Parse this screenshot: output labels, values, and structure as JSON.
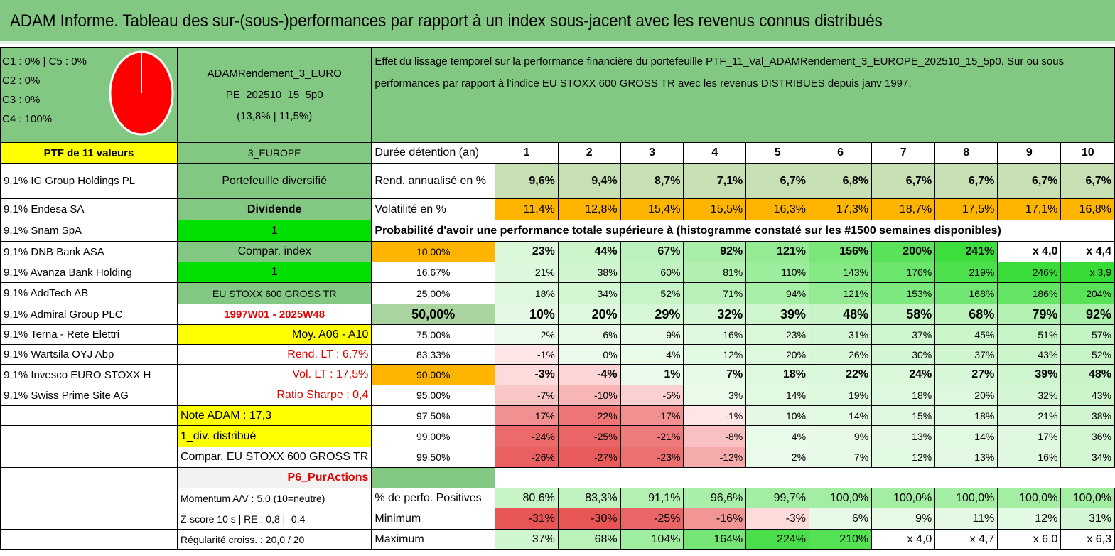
{
  "title": "ADAM Informe. Tableau des sur-(sous-)performances par rapport à un index sous-jacent avec les revenus connus distribués",
  "allocation": {
    "lines": [
      "C1 : 0% | C5 : 0%",
      "C2 : 0%",
      "C3 : 0%",
      "C4 : 100%"
    ],
    "pie_color": "#ff0000",
    "share_c4": 100
  },
  "portfolio": {
    "name_lines": [
      "ADAMRendement_3_EURO",
      "PE_202510_15_5p0",
      "(13,8% | 11,5%)"
    ],
    "count_label": "PTF de 11 valeurs",
    "zone": "3_EUROPE",
    "description": "Effet du lissage temporel sur la performance financière du portefeuille PTF_11_Val_ADAMRendement_3_EUROPE_202510_15_5p0. Sur ou sous performances par rapport à l'indice EU STOXX 600 GROSS TR avec les revenus DISTRIBUES depuis janv 1997.",
    "holdings": [
      "9,1% IG Group Holdings PL",
      "9,1% Endesa SA",
      "9,1% Snam SpA",
      "9,1% DNB Bank ASA",
      "9,1% Avanza Bank Holding",
      "9,1% AddTech AB",
      "9,1% Admiral Group PLC",
      "9,1% Terna - Rete Elettri",
      "9,1% Wartsila OYJ Abp",
      "9,1% Invesco EURO STOXX H",
      "9,1% Swiss Prime Site AG"
    ],
    "info": [
      "Portefeuille diversifié",
      "Dividende",
      "1",
      "Compar. index",
      "1",
      "EU STOXX 600 GROSS TR",
      "1997W01 - 2025W48",
      "Moy. A06 - A10",
      "Rend. LT : 6,7%",
      "Vol. LT : 17,5%",
      "Ratio Sharpe : 0,4",
      "Note ADAM : 17,3",
      "1_div. distribué",
      "Compar. EU STOXX 600 GROSS TR",
      "P6_PurActions",
      "Momentum A/V : 5,0 (10=neutre)",
      "Z-score 10 s | RE : 0,8 | -0,4",
      "Régularité croiss. : 20,0 / 20"
    ]
  },
  "table": {
    "duration_label": "Durée détention (an)",
    "years": [
      "1",
      "2",
      "3",
      "4",
      "5",
      "6",
      "7",
      "8",
      "9",
      "10"
    ],
    "rend_label": "Rend. annualisé en %",
    "rend": [
      "9,6%",
      "9,4%",
      "8,7%",
      "7,1%",
      "6,7%",
      "6,8%",
      "6,7%",
      "6,7%",
      "6,7%",
      "6,7%"
    ],
    "vol_label": "Volatilité en %",
    "vol": [
      "11,4%",
      "12,8%",
      "15,4%",
      "15,5%",
      "16,3%",
      "17,3%",
      "18,7%",
      "17,5%",
      "17,1%",
      "16,8%"
    ],
    "prob_title": "Probabilité d'avoir une performance totale supérieure à (histogramme constaté sur les #1500 semaines disponibles)",
    "prob_rows": [
      {
        "p": "10,00%",
        "v": [
          "23%",
          "44%",
          "67%",
          "92%",
          "121%",
          "156%",
          "200%",
          "241%",
          "x 4,0",
          "x 4,4"
        ]
      },
      {
        "p": "16,67%",
        "v": [
          "21%",
          "38%",
          "60%",
          "81%",
          "110%",
          "143%",
          "176%",
          "219%",
          "246%",
          "x 3,9"
        ]
      },
      {
        "p": "25,00%",
        "v": [
          "18%",
          "34%",
          "52%",
          "71%",
          "94%",
          "121%",
          "153%",
          "168%",
          "186%",
          "204%"
        ]
      },
      {
        "p": "50,00%",
        "v": [
          "10%",
          "20%",
          "29%",
          "32%",
          "39%",
          "48%",
          "58%",
          "68%",
          "79%",
          "92%"
        ]
      },
      {
        "p": "75,00%",
        "v": [
          "2%",
          "6%",
          "9%",
          "16%",
          "23%",
          "31%",
          "37%",
          "45%",
          "51%",
          "57%"
        ]
      },
      {
        "p": "83,33%",
        "v": [
          "-1%",
          "0%",
          "4%",
          "12%",
          "20%",
          "26%",
          "30%",
          "37%",
          "43%",
          "52%"
        ]
      },
      {
        "p": "90,00%",
        "v": [
          "-3%",
          "-4%",
          "1%",
          "7%",
          "18%",
          "22%",
          "24%",
          "27%",
          "39%",
          "48%"
        ]
      },
      {
        "p": "95,00%",
        "v": [
          "-7%",
          "-10%",
          "-5%",
          "3%",
          "14%",
          "19%",
          "18%",
          "20%",
          "32%",
          "43%"
        ]
      },
      {
        "p": "97,50%",
        "v": [
          "-17%",
          "-22%",
          "-17%",
          "-1%",
          "10%",
          "14%",
          "15%",
          "18%",
          "21%",
          "38%"
        ]
      },
      {
        "p": "99,00%",
        "v": [
          "-24%",
          "-25%",
          "-21%",
          "-8%",
          "4%",
          "9%",
          "13%",
          "14%",
          "17%",
          "36%"
        ]
      },
      {
        "p": "99,50%",
        "v": [
          "-26%",
          "-27%",
          "-23%",
          "-12%",
          "2%",
          "7%",
          "12%",
          "13%",
          "16%",
          "34%"
        ]
      }
    ],
    "pos_label": "% de perfo. Positives",
    "pos": [
      "80,6%",
      "83,3%",
      "91,1%",
      "96,6%",
      "99,7%",
      "100,0%",
      "100,0%",
      "100,0%",
      "100,0%",
      "100,0%"
    ],
    "min_label": "Minimum",
    "min": [
      "-31%",
      "-30%",
      "-25%",
      "-16%",
      "-3%",
      "6%",
      "9%",
      "11%",
      "12%",
      "31%"
    ],
    "max_label": "Maximum",
    "max": [
      "37%",
      "68%",
      "104%",
      "164%",
      "224%",
      "210%",
      "x 4,0",
      "x 4,7",
      "x 6,0",
      "x 6,3"
    ]
  },
  "colors": {
    "header_green": "#82c882",
    "light_green": "#a9d4a0",
    "bright_green": "#00e000",
    "yellow": "#ffff00",
    "orange": "#ffb400",
    "red_text": "#e00000"
  }
}
